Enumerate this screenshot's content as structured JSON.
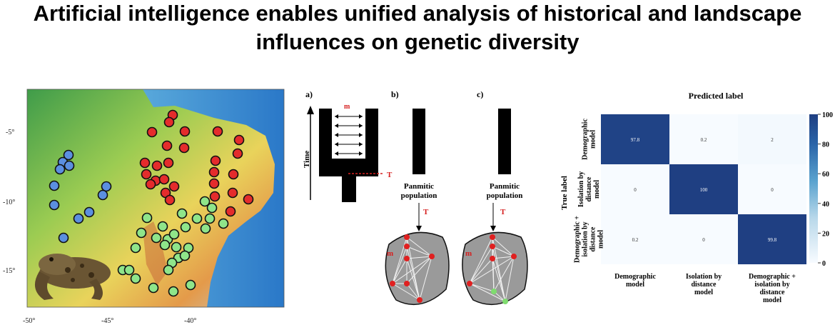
{
  "title": {
    "line1": "Artificial intelligence enables unified analysis of historical and landscape",
    "line2": "influences on genetic diversity"
  },
  "map": {
    "lat_labels": [
      "-5°",
      "-10°",
      "-15°"
    ],
    "lon_labels": [
      "-50°",
      "-45°",
      "-40°"
    ],
    "colors": {
      "red": "#e42c2c",
      "blue": "#5b8fe0",
      "green": "#8fe58a"
    }
  },
  "models": {
    "a_label": "a)",
    "b_label": "b)",
    "c_label": "c)",
    "time_label": "Time",
    "m_label": "m",
    "t_label": "T",
    "panmictic_b": [
      "Panmitic",
      "population"
    ],
    "panmictic_c": [
      "Panmitic",
      "population"
    ]
  },
  "confusion": {
    "top_title": "Predicted label",
    "y_title": "True label",
    "row_labels": [
      [
        "Demographic",
        "model"
      ],
      [
        "Isolation by",
        "distance",
        "model"
      ],
      [
        "Demographic +",
        "isolation by",
        "distance",
        "model"
      ]
    ],
    "col_labels": [
      [
        "Demographic",
        "model"
      ],
      [
        "Isolation by",
        "distance",
        "model"
      ],
      [
        "Demographic +",
        "isolation by",
        "distance",
        "model"
      ]
    ],
    "colorbar_ticks": [
      "100",
      "80",
      "60",
      "40",
      "20",
      "0"
    ]
  },
  "chart_data": {
    "type": "heatmap",
    "title": "Predicted label",
    "xlabel": "Predicted label",
    "ylabel": "True label",
    "categories": [
      "Demographic model",
      "Isolation by distance model",
      "Demographic + isolation by distance model"
    ],
    "values": [
      [
        97.8,
        0.2,
        2
      ],
      [
        0,
        100,
        0
      ],
      [
        0.2,
        0,
        99.8
      ]
    ],
    "cell_text": [
      [
        "97.8",
        "0.2",
        "2"
      ],
      [
        "0",
        "100",
        "0"
      ],
      [
        "0.2",
        "0",
        "99.8"
      ]
    ],
    "colorbar_range": [
      0,
      100
    ]
  }
}
